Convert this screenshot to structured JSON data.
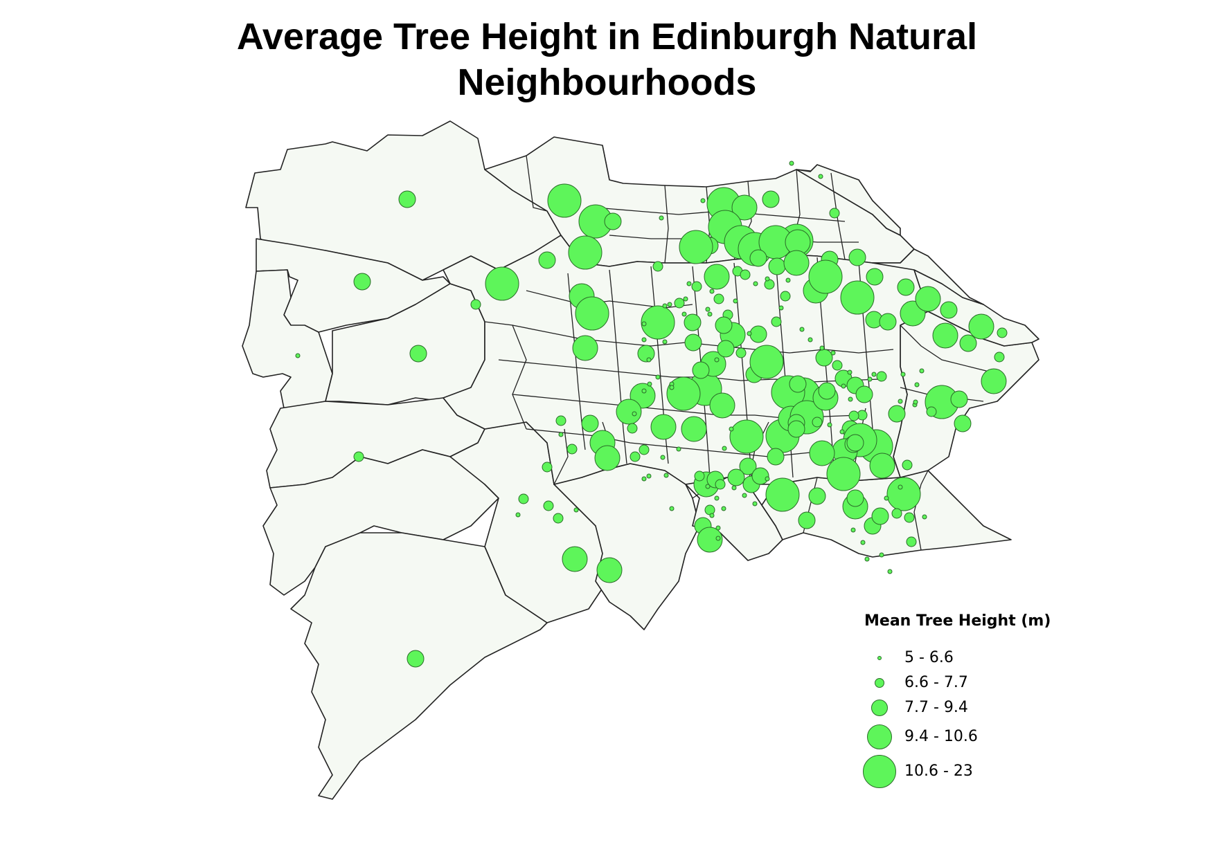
{
  "title_line1": "Average Tree Height in Edinburgh Natural",
  "title_line2": "Neighbourhoods",
  "colors": {
    "background": "#ffffff",
    "region_fill": "#f5f9f3",
    "region_stroke": "#222222",
    "symbol_fill": "#5ef55a",
    "symbol_stroke": "#2a6b28"
  },
  "legend": {
    "title": "Mean Tree Height (m)",
    "classes": [
      {
        "label": "5 - 6.6"
      },
      {
        "label": "6.6 - 7.7"
      },
      {
        "label": "7.7 - 9.4"
      },
      {
        "label": "9.4 - 10.6"
      },
      {
        "label": "10.6 - 23"
      }
    ]
  }
}
